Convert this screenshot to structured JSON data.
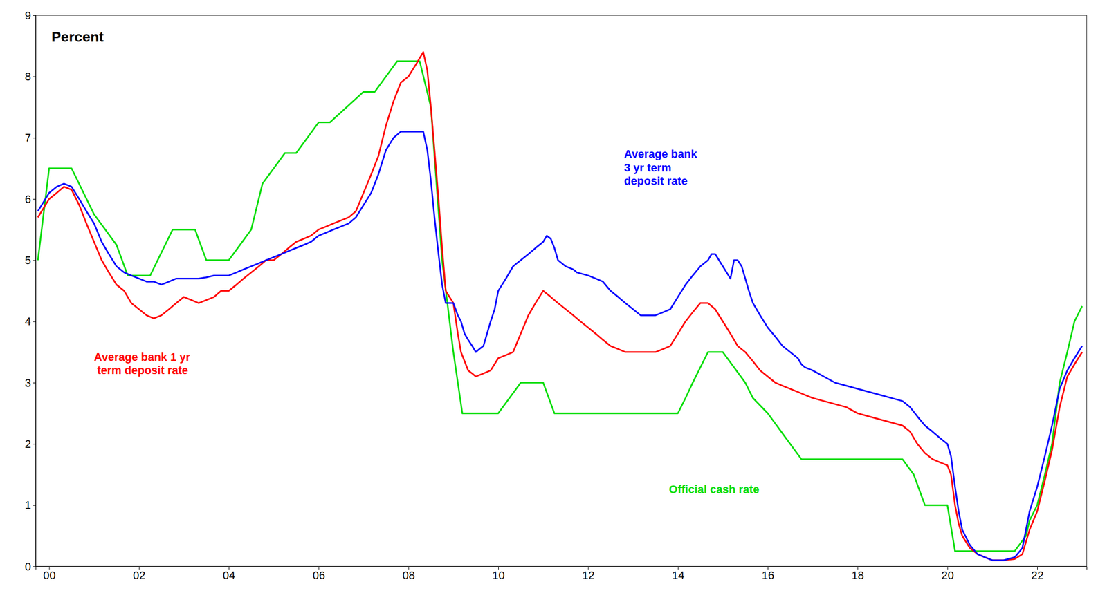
{
  "chart_data": {
    "type": "line",
    "title": "Percent",
    "xlim": [
      1999.7,
      2023.1
    ],
    "ylim": [
      0,
      9
    ],
    "xticks": [
      {
        "value": 2000,
        "label": "00"
      },
      {
        "value": 2002,
        "label": "02"
      },
      {
        "value": 2004,
        "label": "04"
      },
      {
        "value": 2006,
        "label": "06"
      },
      {
        "value": 2008,
        "label": "08"
      },
      {
        "value": 2010,
        "label": "10"
      },
      {
        "value": 2012,
        "label": "12"
      },
      {
        "value": 2014,
        "label": "14"
      },
      {
        "value": 2016,
        "label": "16"
      },
      {
        "value": 2018,
        "label": "18"
      },
      {
        "value": 2020,
        "label": "20"
      },
      {
        "value": 2022,
        "label": "22"
      }
    ],
    "yticks": [
      0,
      1,
      2,
      3,
      4,
      5,
      6,
      7,
      8,
      9
    ],
    "grid": false,
    "annotations": [
      {
        "text": "Average bank 1 yr\n term deposit rate",
        "x": 2001.0,
        "y": 3.3,
        "color": "#ff0000"
      },
      {
        "text": "Average bank\n3 yr term\ndeposit rate",
        "x": 2012.8,
        "y": 6.5,
        "color": "#0000ff"
      },
      {
        "text": "Official cash rate",
        "x": 2013.8,
        "y": 1.25,
        "color": "#00dd00"
      }
    ],
    "series": [
      {
        "color": "#00dd00",
        "x": [
          1999.75,
          2000.0,
          2000.5,
          2001.0,
          2001.25,
          2001.5,
          2001.75,
          2002.0,
          2002.25,
          2002.75,
          2003.0,
          2003.25,
          2003.5,
          2003.75,
          2004.0,
          2004.25,
          2004.5,
          2004.75,
          2005.0,
          2005.25,
          2005.5,
          2006.0,
          2006.25,
          2007.0,
          2007.25,
          2007.5,
          2007.75,
          2008.0,
          2008.25,
          2008.5,
          2008.6,
          2008.75,
          2009.0,
          2009.1,
          2009.2,
          2009.5,
          2010.0,
          2010.25,
          2010.5,
          2011.0,
          2011.25,
          2011.5,
          2012.0,
          2013.0,
          2014.0,
          2014.17,
          2014.33,
          2014.5,
          2014.67,
          2015.0,
          2015.25,
          2015.5,
          2015.67,
          2016.0,
          2016.25,
          2016.5,
          2016.75,
          2017.0,
          2018.0,
          2019.0,
          2019.25,
          2019.5,
          2020.0,
          2020.17,
          2020.25,
          2021.0,
          2021.5,
          2021.75,
          2021.83,
          2022.0,
          2022.17,
          2022.33,
          2022.5,
          2022.67,
          2022.83,
          2023.0
        ],
        "values": [
          5.0,
          6.5,
          6.5,
          5.75,
          5.5,
          5.25,
          4.75,
          4.75,
          4.75,
          5.5,
          5.5,
          5.5,
          5.0,
          5.0,
          5.0,
          5.25,
          5.5,
          6.25,
          6.5,
          6.75,
          6.75,
          7.25,
          7.25,
          7.75,
          7.75,
          8.0,
          8.25,
          8.25,
          8.25,
          7.5,
          6.5,
          5.0,
          3.5,
          3.0,
          2.5,
          2.5,
          2.5,
          2.75,
          3.0,
          3.0,
          2.5,
          2.5,
          2.5,
          2.5,
          2.5,
          2.75,
          3.0,
          3.25,
          3.5,
          3.5,
          3.25,
          3.0,
          2.75,
          2.5,
          2.25,
          2.0,
          1.75,
          1.75,
          1.75,
          1.75,
          1.5,
          1.0,
          1.0,
          0.25,
          0.25,
          0.25,
          0.25,
          0.5,
          0.75,
          1.0,
          1.5,
          2.0,
          3.0,
          3.5,
          4.0,
          4.25
        ]
      },
      {
        "color": "#ff0000",
        "x": [
          1999.75,
          2000.0,
          2000.17,
          2000.33,
          2000.5,
          2000.67,
          2000.83,
          2001.0,
          2001.17,
          2001.33,
          2001.5,
          2001.67,
          2001.83,
          2002.0,
          2002.17,
          2002.33,
          2002.5,
          2002.67,
          2002.83,
          2003.0,
          2003.17,
          2003.33,
          2003.5,
          2003.67,
          2003.83,
          2004.0,
          2004.17,
          2004.33,
          2004.5,
          2004.67,
          2004.83,
          2005.0,
          2005.17,
          2005.33,
          2005.5,
          2005.67,
          2005.83,
          2006.0,
          2006.17,
          2006.33,
          2006.5,
          2006.67,
          2006.83,
          2007.0,
          2007.17,
          2007.33,
          2007.5,
          2007.67,
          2007.83,
          2008.0,
          2008.17,
          2008.33,
          2008.42,
          2008.5,
          2008.58,
          2008.67,
          2008.75,
          2008.83,
          2009.0,
          2009.1,
          2009.17,
          2009.25,
          2009.33,
          2009.42,
          2009.5,
          2009.67,
          2009.83,
          2010.0,
          2010.17,
          2010.33,
          2010.5,
          2010.67,
          2010.83,
          2011.0,
          2011.17,
          2011.33,
          2011.5,
          2011.67,
          2011.83,
          2012.0,
          2012.17,
          2012.33,
          2012.5,
          2012.67,
          2012.83,
          2013.0,
          2013.17,
          2013.33,
          2013.5,
          2013.67,
          2013.83,
          2014.0,
          2014.17,
          2014.33,
          2014.5,
          2014.67,
          2014.83,
          2015.0,
          2015.17,
          2015.33,
          2015.5,
          2015.67,
          2015.83,
          2016.0,
          2016.17,
          2016.33,
          2016.5,
          2016.67,
          2016.83,
          2017.0,
          2017.25,
          2017.5,
          2017.75,
          2018.0,
          2018.25,
          2018.5,
          2018.75,
          2019.0,
          2019.17,
          2019.33,
          2019.5,
          2019.67,
          2019.83,
          2020.0,
          2020.08,
          2020.17,
          2020.25,
          2020.33,
          2020.5,
          2020.67,
          2020.83,
          2021.0,
          2021.25,
          2021.5,
          2021.67,
          2021.75,
          2021.83,
          2022.0,
          2022.17,
          2022.33,
          2022.5,
          2022.67,
          2022.83,
          2023.0
        ],
        "values": [
          5.7,
          6.0,
          6.1,
          6.2,
          6.15,
          5.9,
          5.6,
          5.3,
          5.0,
          4.8,
          4.6,
          4.5,
          4.3,
          4.2,
          4.1,
          4.05,
          4.1,
          4.2,
          4.3,
          4.4,
          4.35,
          4.3,
          4.35,
          4.4,
          4.5,
          4.5,
          4.6,
          4.7,
          4.8,
          4.9,
          5.0,
          5.0,
          5.1,
          5.2,
          5.3,
          5.35,
          5.4,
          5.5,
          5.55,
          5.6,
          5.65,
          5.7,
          5.8,
          6.1,
          6.4,
          6.7,
          7.2,
          7.6,
          7.9,
          8.0,
          8.2,
          8.4,
          8.1,
          7.5,
          6.8,
          6.0,
          5.2,
          4.5,
          4.3,
          3.8,
          3.5,
          3.35,
          3.2,
          3.15,
          3.1,
          3.15,
          3.2,
          3.4,
          3.45,
          3.5,
          3.8,
          4.1,
          4.3,
          4.5,
          4.4,
          4.3,
          4.2,
          4.1,
          4.0,
          3.9,
          3.8,
          3.7,
          3.6,
          3.55,
          3.5,
          3.5,
          3.5,
          3.5,
          3.5,
          3.55,
          3.6,
          3.8,
          4.0,
          4.15,
          4.3,
          4.3,
          4.2,
          4.0,
          3.8,
          3.6,
          3.5,
          3.35,
          3.2,
          3.1,
          3.0,
          2.95,
          2.9,
          2.85,
          2.8,
          2.75,
          2.7,
          2.65,
          2.6,
          2.5,
          2.45,
          2.4,
          2.35,
          2.3,
          2.2,
          2.0,
          1.85,
          1.75,
          1.7,
          1.65,
          1.5,
          1.0,
          0.7,
          0.5,
          0.3,
          0.2,
          0.15,
          0.1,
          0.1,
          0.12,
          0.2,
          0.4,
          0.6,
          0.9,
          1.4,
          1.9,
          2.6,
          3.1,
          3.3,
          3.5
        ]
      },
      {
        "color": "#0000ff",
        "x": [
          1999.75,
          2000.0,
          2000.17,
          2000.33,
          2000.5,
          2000.67,
          2000.83,
          2001.0,
          2001.17,
          2001.33,
          2001.5,
          2001.67,
          2001.83,
          2002.0,
          2002.17,
          2002.33,
          2002.5,
          2002.67,
          2002.83,
          2003.0,
          2003.17,
          2003.33,
          2003.5,
          2003.67,
          2003.83,
          2004.0,
          2004.17,
          2004.33,
          2004.5,
          2004.67,
          2004.83,
          2005.0,
          2005.17,
          2005.33,
          2005.5,
          2005.67,
          2005.83,
          2006.0,
          2006.17,
          2006.33,
          2006.5,
          2006.67,
          2006.83,
          2007.0,
          2007.17,
          2007.33,
          2007.5,
          2007.67,
          2007.83,
          2008.0,
          2008.17,
          2008.33,
          2008.42,
          2008.5,
          2008.58,
          2008.67,
          2008.75,
          2008.83,
          2009.0,
          2009.1,
          2009.17,
          2009.25,
          2009.33,
          2009.42,
          2009.5,
          2009.58,
          2009.67,
          2009.75,
          2009.83,
          2009.92,
          2010.0,
          2010.17,
          2010.33,
          2010.5,
          2010.67,
          2010.83,
          2011.0,
          2011.08,
          2011.17,
          2011.25,
          2011.33,
          2011.5,
          2011.67,
          2011.75,
          2012.0,
          2012.17,
          2012.33,
          2012.5,
          2012.67,
          2012.83,
          2013.0,
          2013.17,
          2013.33,
          2013.5,
          2013.67,
          2013.83,
          2014.0,
          2014.17,
          2014.33,
          2014.5,
          2014.67,
          2014.75,
          2014.83,
          2015.0,
          2015.17,
          2015.25,
          2015.33,
          2015.42,
          2015.5,
          2015.58,
          2015.67,
          2015.83,
          2016.0,
          2016.17,
          2016.33,
          2016.5,
          2016.67,
          2016.75,
          2016.83,
          2017.0,
          2017.25,
          2017.5,
          2017.75,
          2018.0,
          2018.25,
          2018.5,
          2018.75,
          2019.0,
          2019.17,
          2019.33,
          2019.5,
          2019.67,
          2019.83,
          2020.0,
          2020.08,
          2020.17,
          2020.25,
          2020.33,
          2020.5,
          2020.67,
          2020.83,
          2021.0,
          2021.25,
          2021.5,
          2021.67,
          2021.75,
          2021.83,
          2022.0,
          2022.17,
          2022.33,
          2022.5,
          2022.67,
          2022.83,
          2023.0
        ],
        "values": [
          5.8,
          6.1,
          6.2,
          6.25,
          6.2,
          6.0,
          5.8,
          5.6,
          5.3,
          5.1,
          4.9,
          4.8,
          4.75,
          4.7,
          4.65,
          4.65,
          4.6,
          4.65,
          4.7,
          4.7,
          4.7,
          4.7,
          4.72,
          4.75,
          4.75,
          4.75,
          4.8,
          4.85,
          4.9,
          4.95,
          5.0,
          5.05,
          5.1,
          5.15,
          5.2,
          5.25,
          5.3,
          5.4,
          5.45,
          5.5,
          5.55,
          5.6,
          5.7,
          5.9,
          6.1,
          6.4,
          6.8,
          7.0,
          7.1,
          7.1,
          7.1,
          7.1,
          6.8,
          6.3,
          5.7,
          5.1,
          4.6,
          4.3,
          4.3,
          4.1,
          4.0,
          3.8,
          3.7,
          3.6,
          3.5,
          3.55,
          3.6,
          3.8,
          4.0,
          4.2,
          4.5,
          4.7,
          4.9,
          5.0,
          5.1,
          5.2,
          5.3,
          5.4,
          5.35,
          5.2,
          5.0,
          4.9,
          4.85,
          4.8,
          4.75,
          4.7,
          4.65,
          4.5,
          4.4,
          4.3,
          4.2,
          4.1,
          4.1,
          4.1,
          4.15,
          4.2,
          4.4,
          4.6,
          4.75,
          4.9,
          5.0,
          5.1,
          5.1,
          4.9,
          4.7,
          5.0,
          5.0,
          4.9,
          4.7,
          4.5,
          4.3,
          4.1,
          3.9,
          3.75,
          3.6,
          3.5,
          3.4,
          3.3,
          3.25,
          3.2,
          3.1,
          3.0,
          2.95,
          2.9,
          2.85,
          2.8,
          2.75,
          2.7,
          2.6,
          2.45,
          2.3,
          2.2,
          2.1,
          2.0,
          1.8,
          1.3,
          0.9,
          0.6,
          0.35,
          0.2,
          0.15,
          0.1,
          0.1,
          0.15,
          0.3,
          0.6,
          0.9,
          1.3,
          1.8,
          2.3,
          2.9,
          3.2,
          3.4,
          3.6
        ]
      }
    ]
  }
}
